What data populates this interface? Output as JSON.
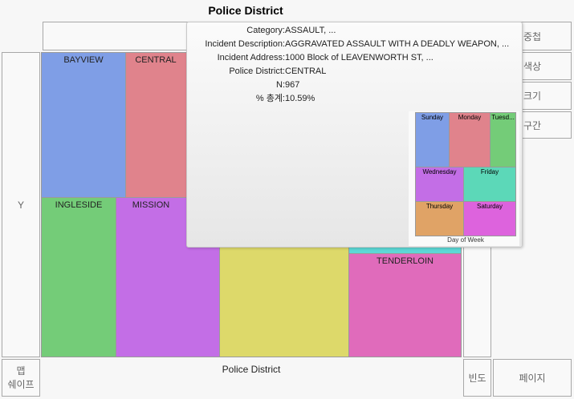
{
  "title": "Police District",
  "zones": {
    "y": "Y",
    "overlay": "중첩",
    "color": "색상",
    "size": "크기",
    "bin": "구간",
    "map_shape": "맵\n쉐이프",
    "x_label": "Police District",
    "freq": "빈도",
    "page": "페이지"
  },
  "treemap": [
    {
      "label": "BAYVIEW",
      "color": "#7f9ee6"
    },
    {
      "label": "CENTRAL",
      "color": "#e0838c"
    },
    {
      "label": "INGLESIDE",
      "color": "#74cc78"
    },
    {
      "label": "MISSION",
      "color": "#c36ee6"
    },
    {
      "label": "",
      "color": "#ddd96a"
    },
    {
      "label": "",
      "color": "#5cd8d6"
    },
    {
      "label": "TENDERLOIN",
      "color": "#e06bbb"
    }
  ],
  "tooltip": {
    "rows": [
      {
        "key": "Category:",
        "value": "ASSAULT, ..."
      },
      {
        "key": "Incident Description:",
        "value": "AGGRAVATED ASSAULT WITH A DEADLY WEAPON, ..."
      },
      {
        "key": "Incident Address:",
        "value": "1000 Block of LEAVENWORTH ST, ..."
      },
      {
        "key": "Police District:",
        "value": "CENTRAL"
      },
      {
        "key": "N:",
        "value": "967"
      },
      {
        "key": "% 총계:",
        "value": "10.59%"
      }
    ],
    "mini_title": "Day of Week",
    "mini": [
      {
        "label": "Sunday",
        "color": "#7f9ee6"
      },
      {
        "label": "Monday",
        "color": "#e0838c"
      },
      {
        "label": "Tuesd...",
        "color": "#74cc78"
      },
      {
        "label": "Wednesday",
        "color": "#c36ee6"
      },
      {
        "label": "Friday",
        "color": "#5cd8b8"
      },
      {
        "label": "Thursday",
        "color": "#e0a366"
      },
      {
        "label": "Saturday",
        "color": "#dd63dd"
      }
    ]
  }
}
